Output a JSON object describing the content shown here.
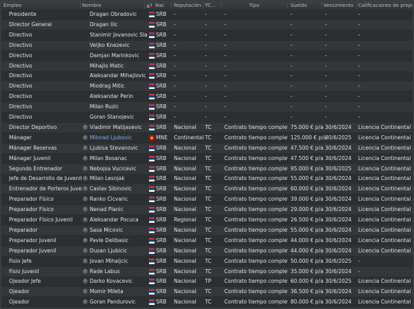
{
  "header": {
    "empleo": "Empleo",
    "nombre": "Nombre",
    "nac": "Nac",
    "reputacion": "Reputación",
    "tc": "TC...",
    "tipo": "Tipo",
    "sueldo": "Sueldo",
    "vencimiento": "Vencimiento",
    "calificaciones": "Calificaciones de preparad"
  },
  "rows": [
    {
      "job": "Presidente",
      "name": "Dragan Obradovic",
      "nat": "SRB",
      "rep": "-",
      "tc": "-",
      "tipo": "-",
      "sal": "-",
      "venc": "-",
      "lic": "-",
      "info": false
    },
    {
      "job": "Director General",
      "name": "Dragan Ilic",
      "nat": "SRB",
      "rep": "-",
      "tc": "-",
      "tipo": "-",
      "sal": "-",
      "venc": "-",
      "lic": "-",
      "info": false
    },
    {
      "job": "Directivo",
      "name": "Stanimir Jovanovic Slavinski",
      "nat": "SRB",
      "rep": "-",
      "tc": "-",
      "tipo": "-",
      "sal": "-",
      "venc": "-",
      "lic": "-",
      "info": false
    },
    {
      "job": "Directivo",
      "name": "Veljko Knezevic",
      "nat": "SRB",
      "rep": "-",
      "tc": "-",
      "tipo": "-",
      "sal": "-",
      "venc": "-",
      "lic": "-",
      "info": false
    },
    {
      "job": "Directivo",
      "name": "Damjan Marinkovic",
      "nat": "SRB",
      "rep": "-",
      "tc": "-",
      "tipo": "-",
      "sal": "-",
      "venc": "-",
      "lic": "-",
      "info": false
    },
    {
      "job": "Directivo",
      "name": "Mihajlo Matic",
      "nat": "SRB",
      "rep": "-",
      "tc": "-",
      "tipo": "-",
      "sal": "-",
      "venc": "-",
      "lic": "-",
      "info": false
    },
    {
      "job": "Directivo",
      "name": "Aleksandar Mihajlovic",
      "nat": "SRB",
      "rep": "-",
      "tc": "-",
      "tipo": "-",
      "sal": "-",
      "venc": "-",
      "lic": "-",
      "info": false
    },
    {
      "job": "Directivo",
      "name": "Miodrag Mitic",
      "nat": "SRB",
      "rep": "-",
      "tc": "-",
      "tipo": "-",
      "sal": "-",
      "venc": "-",
      "lic": "-",
      "info": false
    },
    {
      "job": "Directivo",
      "name": "Aleksandar Perin",
      "nat": "SRB",
      "rep": "-",
      "tc": "-",
      "tipo": "-",
      "sal": "-",
      "venc": "-",
      "lic": "-",
      "info": false
    },
    {
      "job": "Directivo",
      "name": "Milan Ruzic",
      "nat": "SRB",
      "rep": "-",
      "tc": "-",
      "tipo": "-",
      "sal": "-",
      "venc": "-",
      "lic": "-",
      "info": false
    },
    {
      "job": "Directivo",
      "name": "Goran Stanojevic",
      "nat": "SRB",
      "rep": "-",
      "tc": "-",
      "tipo": "-",
      "sal": "-",
      "venc": "-",
      "lic": "-",
      "info": false
    },
    {
      "job": "Director Deportivo",
      "name": "Vladimir Matijasevic",
      "nat": "SRB",
      "rep": "Nacional",
      "tc": "TC",
      "tipo": "Contrato tiempo completo",
      "sal": "75.000 € p/a",
      "venc": "30/6/2024",
      "lic": "Licencia Continental Pro",
      "info": true
    },
    {
      "job": "Mánager",
      "name": "Milorad Ljubovic",
      "nat": "MNE",
      "rep": "Continental",
      "tc": "TC",
      "tipo": "Contrato tiempo completo",
      "sal": "125.000 € p/a",
      "venc": "30/6/2025",
      "lic": "Licencia Continental B",
      "info": true,
      "link": true
    },
    {
      "job": "Mánager Reservas",
      "name": "Ljubisa Stevanovic",
      "nat": "SRB",
      "rep": "Nacional",
      "tc": "TC",
      "tipo": "Contrato tiempo completo",
      "sal": "47.500 € p/a",
      "venc": "30/6/2024",
      "lic": "Licencia Continental A",
      "info": true
    },
    {
      "job": "Mánager Juvenil",
      "name": "Milan Bosanac",
      "nat": "SRB",
      "rep": "Nacional",
      "tc": "TC",
      "tipo": "Contrato tiempo completo",
      "sal": "47.500 € p/a",
      "venc": "30/6/2024",
      "lic": "Licencia Continental Pro",
      "info": true
    },
    {
      "job": "Segundo Entrenador",
      "name": "Nebojsa Vucicevic",
      "nat": "SRB",
      "rep": "Nacional",
      "tc": "TC",
      "tipo": "Contrato tiempo completo",
      "sal": "95.000 € p/a",
      "venc": "30/6/2025",
      "lic": "Licencia Continental Pro",
      "info": true
    },
    {
      "job": "Jefe de Desarrollo de Juveniles",
      "name": "Milan Lesnjak",
      "nat": "SRB",
      "rep": "Nacional",
      "tc": "TC",
      "tipo": "Contrato tiempo completo",
      "sal": "55.000 € p/a",
      "venc": "30/6/2024",
      "lic": "Licencia Continental Pro",
      "info": true
    },
    {
      "job": "Entrenador de Porteros Juvenil",
      "name": "Caslav Sibinovic",
      "nat": "SRB",
      "rep": "Nacional",
      "tc": "TC",
      "tipo": "Contrato tiempo completo",
      "sal": "60.000 € p/a",
      "venc": "30/6/2024",
      "lic": "Licencia Continental A",
      "info": true
    },
    {
      "job": "Preparador Físico",
      "name": "Ranko Cicvaric",
      "nat": "SRB",
      "rep": "Nacional",
      "tc": "TC",
      "tipo": "Contrato tiempo completo",
      "sal": "39.000 € p/a",
      "venc": "30/6/2024",
      "lic": "Licencia Continental A",
      "info": true
    },
    {
      "job": "Preparador Físico",
      "name": "Nenad Planic",
      "nat": "SRB",
      "rep": "Nacional",
      "tc": "TC",
      "tipo": "Contrato tiempo completo",
      "sal": "29.000 € p/a",
      "venc": "30/6/2024",
      "lic": "Licencia Continental A",
      "info": true
    },
    {
      "job": "Preparador Físico Juvenil",
      "name": "Aleksandar Pocuca",
      "nat": "SRB",
      "rep": "Regional",
      "tc": "TC",
      "tipo": "Contrato tiempo completo",
      "sal": "26.500 € p/a",
      "venc": "30/6/2024",
      "lic": "Licencia Continental A",
      "info": true
    },
    {
      "job": "Preparador",
      "name": "Sasa Micovic",
      "nat": "SRB",
      "rep": "Nacional",
      "tc": "TC",
      "tipo": "Contrato tiempo completo",
      "sal": "55.000 € p/a",
      "venc": "30/6/2024",
      "lic": "Licencia Continental Pro",
      "info": true
    },
    {
      "job": "Preparador Juvenil",
      "name": "Pavle Delibasic",
      "nat": "SRB",
      "rep": "Nacional",
      "tc": "TC",
      "tipo": "Contrato tiempo completo",
      "sal": "44.000 € p/a",
      "venc": "30/6/2024",
      "lic": "Licencia Continental Pro",
      "info": true
    },
    {
      "job": "Preparador Juvenil",
      "name": "Dusan Ljubicic",
      "nat": "SRB",
      "rep": "Nacional",
      "tc": "TC",
      "tipo": "Contrato tiempo completo",
      "sal": "44.000 € p/a",
      "venc": "30/6/2024",
      "lic": "Licencia Continental A",
      "info": true
    },
    {
      "job": "Fisio Jefe",
      "name": "Jovan Mihaljcic",
      "nat": "SRB",
      "rep": "Nacional",
      "tc": "TC",
      "tipo": "Contrato tiempo completo",
      "sal": "50.000 € p/a",
      "venc": "30/6/2025",
      "lic": "-",
      "info": true
    },
    {
      "job": "Fisio Juvenil",
      "name": "Rade Labus",
      "nat": "SRB",
      "rep": "Nacional",
      "tc": "TC",
      "tipo": "Contrato tiempo completo",
      "sal": "35.000 € p/a",
      "venc": "30/6/2024",
      "lic": "-",
      "info": true
    },
    {
      "job": "Ojeador Jefe",
      "name": "Darko Kovacevic",
      "nat": "SRB",
      "rep": "Nacional",
      "tc": "TP",
      "tipo": "Contrato tiempo completo",
      "sal": "60.000 € p/a",
      "venc": "30/6/2025",
      "lic": "Licencia Continental Pro",
      "info": true
    },
    {
      "job": "Ojeador",
      "name": "Momir Mileta",
      "nat": "SRB",
      "rep": "Nacional",
      "tc": "TC",
      "tipo": "Contrato tiempo completo",
      "sal": "36.500 € p/a",
      "venc": "30/6/2024",
      "lic": "Licencia Continental A",
      "info": true
    },
    {
      "job": "Ojeador",
      "name": "Goran Pandurovic",
      "nat": "SRB",
      "rep": "Nacional",
      "tc": "TC",
      "tipo": "Contrato tiempo completo",
      "sal": "80.000 € p/a",
      "venc": "30/6/2024",
      "lic": "Licencia Continental Pro",
      "info": true
    }
  ]
}
